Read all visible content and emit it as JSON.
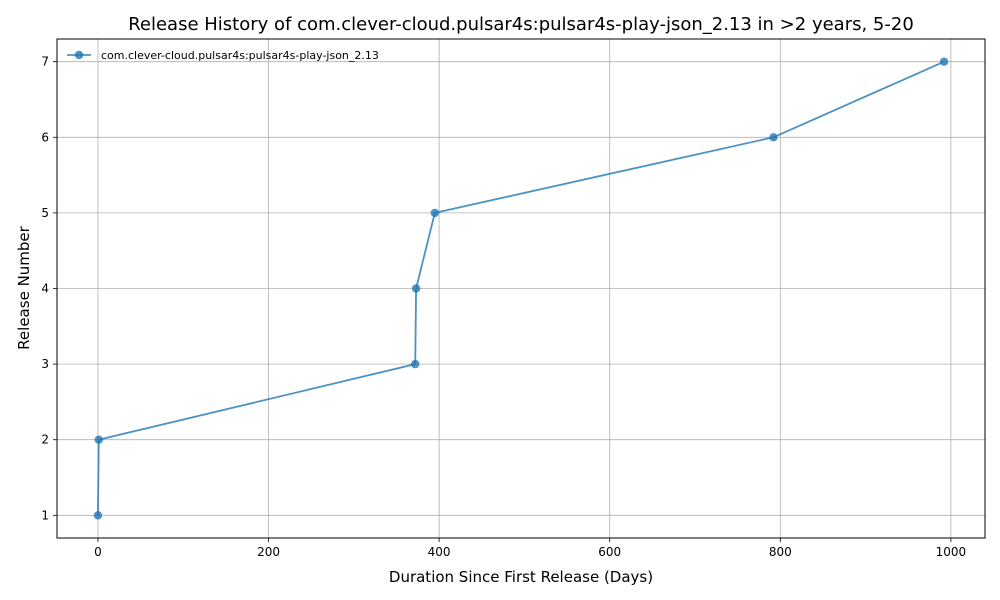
{
  "chart_data": {
    "type": "line",
    "title": "Release History of com.clever-cloud.pulsar4s:pulsar4s-play-json_2.13 in >2 years, 5-20",
    "xlabel": "Duration Since First Release (Days)",
    "ylabel": "Release Number",
    "xlim": [
      -48,
      1040
    ],
    "ylim": [
      0.7,
      7.3
    ],
    "xticks": [
      0,
      200,
      400,
      600,
      800,
      1000
    ],
    "yticks": [
      1,
      2,
      3,
      4,
      5,
      6,
      7
    ],
    "grid": true,
    "legend_position": "top-left",
    "series": [
      {
        "name": "com.clever-cloud.pulsar4s:pulsar4s-play-json_2.13",
        "color": "#1f77b4",
        "x": [
          0,
          1,
          372,
          373,
          395,
          792,
          992
        ],
        "y": [
          1,
          2,
          3,
          4,
          5,
          6,
          7
        ]
      }
    ]
  }
}
